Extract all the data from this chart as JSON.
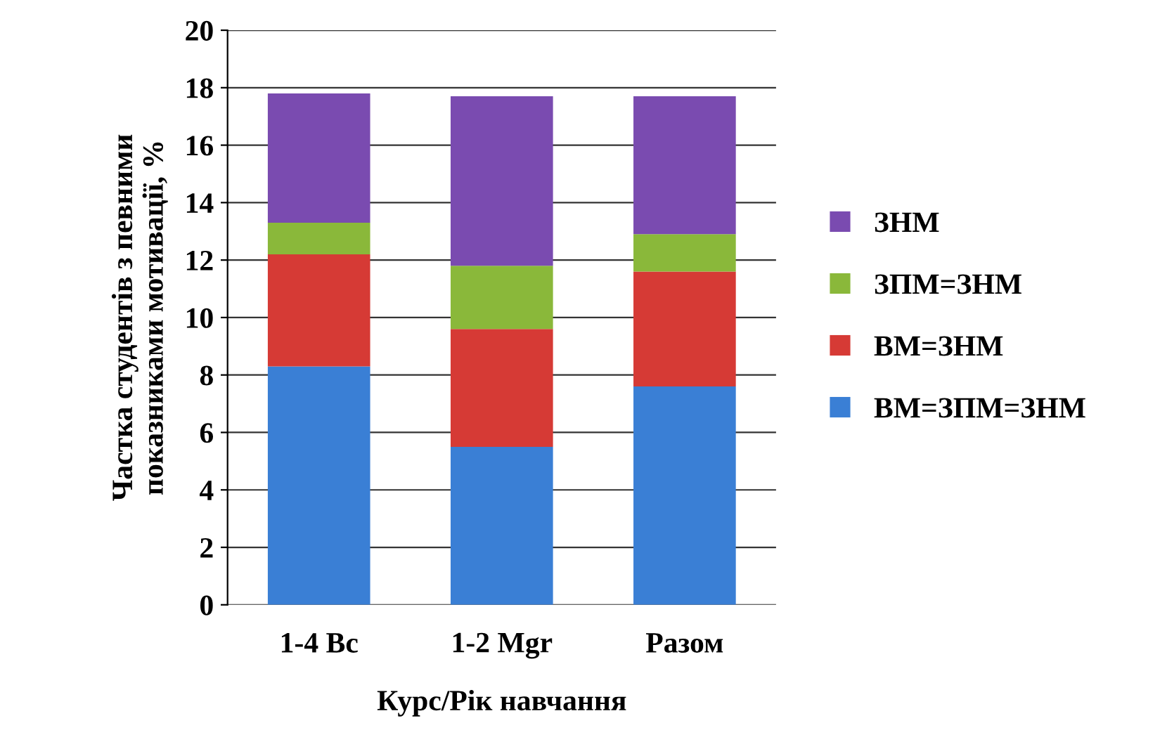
{
  "chart_data": {
    "type": "bar",
    "stacked": true,
    "xlabel": "Курс/Рік навчання",
    "ylabel": "Частка студентів з певними\nпоказниками мотивації, %",
    "categories": [
      "1-4 Bc",
      "1-2 Mgr",
      "Разом"
    ],
    "series": [
      {
        "name": "ВМ=ЗПМ=ЗНМ",
        "color": "#3a7fd5",
        "values": [
          8.3,
          5.5,
          7.6
        ]
      },
      {
        "name": "ВМ=ЗНМ",
        "color": "#d63a35",
        "values": [
          3.9,
          4.1,
          4.0
        ]
      },
      {
        "name": "ЗПМ=ЗНМ",
        "color": "#8ab83a",
        "values": [
          1.1,
          2.2,
          1.3
        ]
      },
      {
        "name": "ЗНМ",
        "color": "#7a4bb0",
        "values": [
          4.5,
          5.9,
          4.8
        ]
      }
    ],
    "ylim": [
      0,
      20
    ],
    "yticks": [
      0,
      2,
      4,
      6,
      8,
      10,
      12,
      14,
      16,
      18,
      20
    ],
    "grid": "y",
    "legend": "right"
  }
}
